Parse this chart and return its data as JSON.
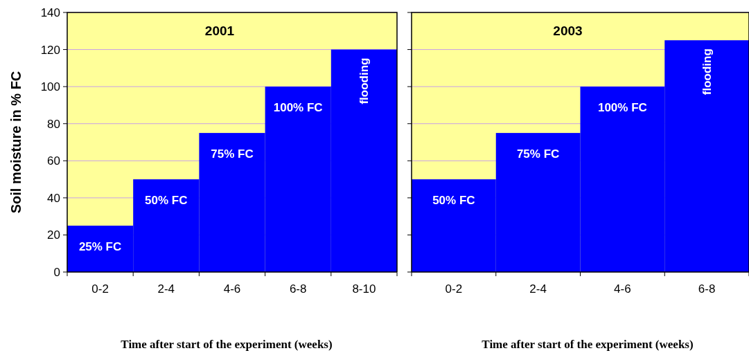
{
  "chart_data": [
    {
      "type": "bar",
      "title": "2001",
      "ylabel": "Soil moisture in % FC",
      "xlabel": "Time after start of the experiment (weeks)",
      "categories": [
        "0-2",
        "2-4",
        "4-6",
        "6-8",
        "8-10"
      ],
      "values": [
        25,
        50,
        75,
        100,
        120
      ],
      "color": "#0000ff",
      "value_labels": [
        "25% FC",
        "50% FC",
        "75% FC",
        "100% FC",
        "flooding"
      ],
      "ylim": [
        0,
        140
      ],
      "yticks": [
        0,
        20,
        40,
        60,
        80,
        100,
        120,
        140
      ],
      "grid": "y",
      "bands": [
        {
          "axis": "y",
          "from": 0,
          "to": 140,
          "color": "#ffff99"
        }
      ]
    },
    {
      "type": "bar",
      "title": "2003",
      "xlabel": "Time after start of the experiment (weeks)",
      "categories": [
        "0-2",
        "2-4",
        "4-6",
        "6-8"
      ],
      "values": [
        50,
        75,
        100,
        125
      ],
      "color": "#0000ff",
      "value_labels": [
        "50% FC",
        "75% FC",
        "100% FC",
        "flooding"
      ],
      "ylim": [
        0,
        140
      ],
      "yticks": [
        0,
        20,
        40,
        60,
        80,
        100,
        120,
        140
      ],
      "grid": "y",
      "tick_labels": "x",
      "bands": [
        {
          "axis": "y",
          "from": 0,
          "to": 140,
          "color": "#ffff99"
        }
      ]
    }
  ]
}
